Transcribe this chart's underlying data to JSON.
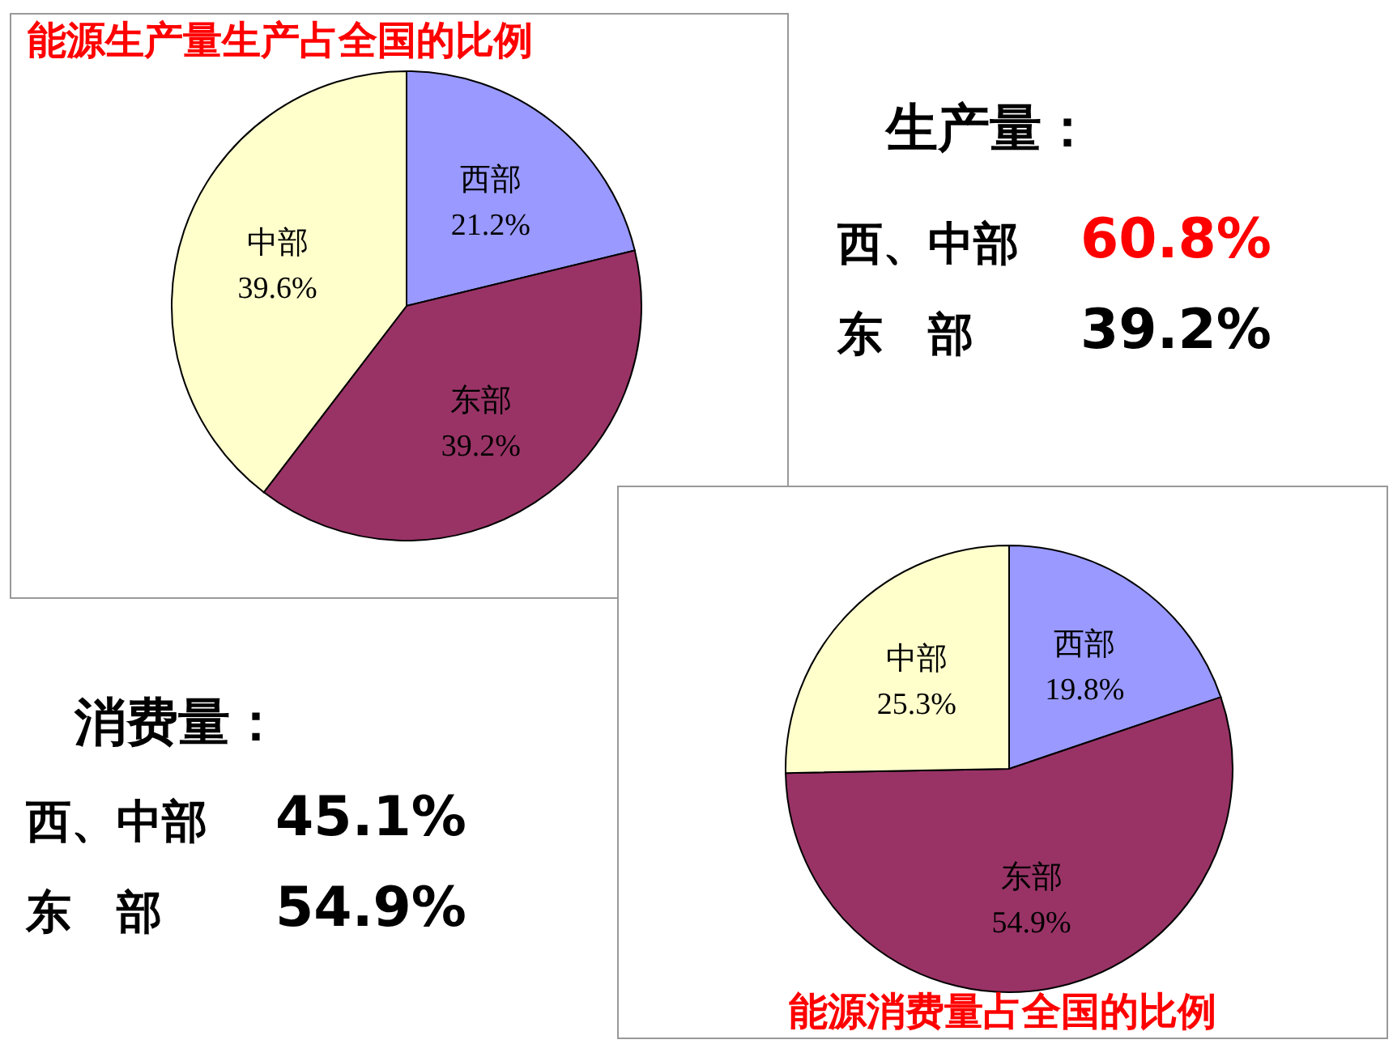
{
  "chart_data": [
    {
      "type": "pie",
      "title": "能源生产量生产占全国的比例",
      "categories": [
        "西部",
        "东部",
        "中部"
      ],
      "values": [
        21.2,
        39.2,
        39.6
      ],
      "colors": [
        "#9999ff",
        "#993366",
        "#ffffcc"
      ],
      "value_labels": [
        "21.2%",
        "39.2%",
        "39.6%"
      ]
    },
    {
      "type": "pie",
      "title": "能源消费量占全国的比例",
      "categories": [
        "西部",
        "东部",
        "中部"
      ],
      "values": [
        19.8,
        54.9,
        25.3
      ],
      "colors": [
        "#9999ff",
        "#993366",
        "#ffffcc"
      ],
      "value_labels": [
        "19.8%",
        "54.9%",
        "25.3%"
      ]
    },
    {
      "type": "other",
      "title": "生产量：",
      "annotations": [
        "西、中部",
        "60.8%",
        "东　部",
        "39.2%"
      ],
      "colors": [
        "#000000",
        "#ff0000",
        "#000000",
        "#000000"
      ]
    },
    {
      "type": "other",
      "title": "消费量：",
      "annotations": [
        "西、中部",
        "45.1%",
        "东　部",
        "54.9%"
      ],
      "colors": [
        "#000000",
        "#000000",
        "#000000",
        "#000000"
      ]
    }
  ]
}
